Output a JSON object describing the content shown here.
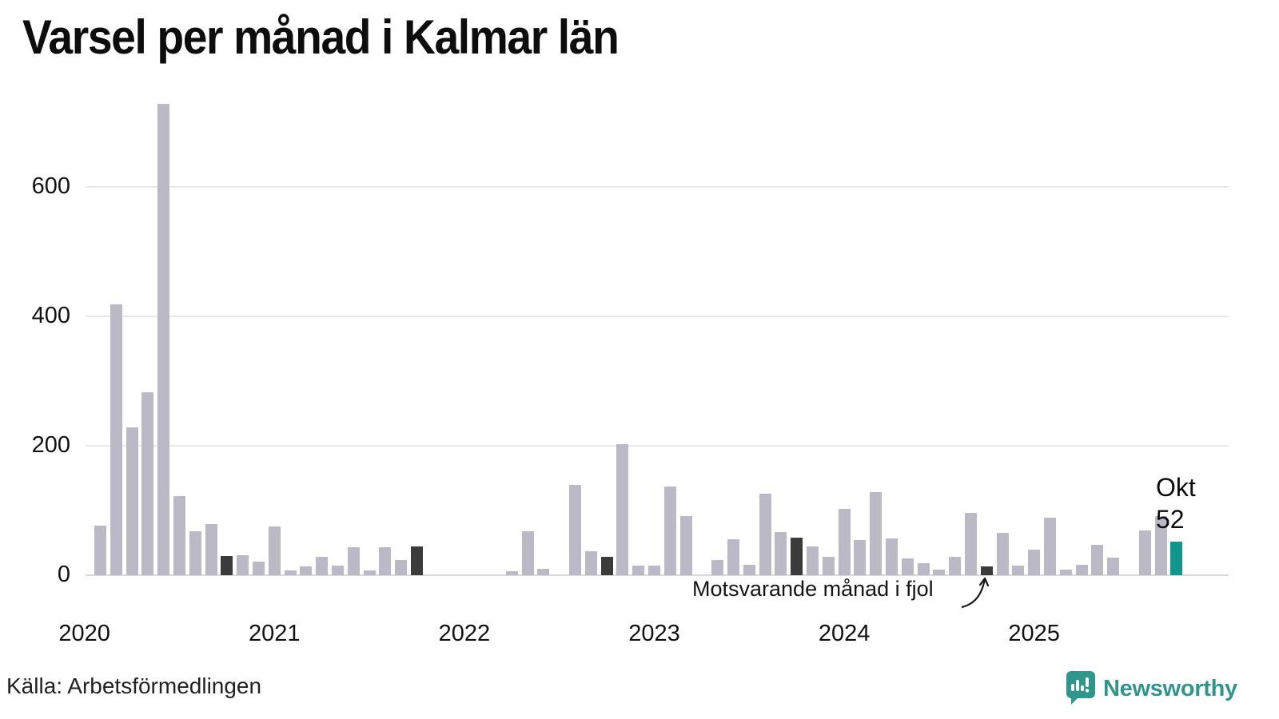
{
  "title": "Varsel per månad i Kalmar län",
  "source": "Källa: Arbetsförmedlingen",
  "annotation": {
    "label": "Motsvarande månad i fjol"
  },
  "current_point": {
    "month_label": "Okt",
    "value_label": "52"
  },
  "logo": {
    "name": "Newsworthy"
  },
  "colors": {
    "bar": "#bcb9c6",
    "bar_fjol": "#3b3b3b",
    "bar_current": "#11968b",
    "grid": "#e9e8ee",
    "axis": "#d9d8e0",
    "text": "#111111",
    "logo_teal": "#2f968c"
  },
  "chart_data": {
    "type": "bar",
    "title": "Varsel per månad i Kalmar län",
    "xlabel": "",
    "ylabel": "",
    "ylim": [
      0,
      750
    ],
    "yticks": [
      0,
      200,
      400,
      600
    ],
    "grid": true,
    "legend_position": "none",
    "x_years": [
      "2020",
      "2021",
      "2022",
      "2023",
      "2024",
      "2025"
    ],
    "annotation_text": "Motsvarande månad i fjol",
    "current_label": "Okt 52",
    "series": [
      {
        "month": "2020-01",
        "value": 0,
        "kind": "zero"
      },
      {
        "month": "2020-02",
        "value": 77,
        "kind": "normal"
      },
      {
        "month": "2020-03",
        "value": 418,
        "kind": "normal"
      },
      {
        "month": "2020-04",
        "value": 228,
        "kind": "normal"
      },
      {
        "month": "2020-05",
        "value": 283,
        "kind": "normal"
      },
      {
        "month": "2020-06",
        "value": 728,
        "kind": "normal"
      },
      {
        "month": "2020-07",
        "value": 122,
        "kind": "normal"
      },
      {
        "month": "2020-08",
        "value": 68,
        "kind": "normal"
      },
      {
        "month": "2020-09",
        "value": 79,
        "kind": "normal"
      },
      {
        "month": "2020-10",
        "value": 30,
        "kind": "fjol"
      },
      {
        "month": "2020-11",
        "value": 31,
        "kind": "normal"
      },
      {
        "month": "2020-12",
        "value": 21,
        "kind": "normal"
      },
      {
        "month": "2021-01",
        "value": 75,
        "kind": "normal"
      },
      {
        "month": "2021-02",
        "value": 7,
        "kind": "normal"
      },
      {
        "month": "2021-03",
        "value": 14,
        "kind": "normal"
      },
      {
        "month": "2021-04",
        "value": 29,
        "kind": "normal"
      },
      {
        "month": "2021-05",
        "value": 15,
        "kind": "normal"
      },
      {
        "month": "2021-06",
        "value": 43,
        "kind": "normal"
      },
      {
        "month": "2021-07",
        "value": 7,
        "kind": "normal"
      },
      {
        "month": "2021-08",
        "value": 43,
        "kind": "normal"
      },
      {
        "month": "2021-09",
        "value": 23,
        "kind": "normal"
      },
      {
        "month": "2021-10",
        "value": 44,
        "kind": "fjol"
      },
      {
        "month": "2021-11",
        "value": 0,
        "kind": "zero"
      },
      {
        "month": "2021-12",
        "value": 0,
        "kind": "zero"
      },
      {
        "month": "2022-01",
        "value": 0,
        "kind": "zero"
      },
      {
        "month": "2022-02",
        "value": 0,
        "kind": "zero"
      },
      {
        "month": "2022-03",
        "value": 0,
        "kind": "zero"
      },
      {
        "month": "2022-04",
        "value": 6,
        "kind": "normal"
      },
      {
        "month": "2022-05",
        "value": 68,
        "kind": "normal"
      },
      {
        "month": "2022-06",
        "value": 10,
        "kind": "normal"
      },
      {
        "month": "2022-07",
        "value": 0,
        "kind": "zero"
      },
      {
        "month": "2022-08",
        "value": 140,
        "kind": "normal"
      },
      {
        "month": "2022-09",
        "value": 37,
        "kind": "normal"
      },
      {
        "month": "2022-10",
        "value": 29,
        "kind": "fjol"
      },
      {
        "month": "2022-11",
        "value": 202,
        "kind": "normal"
      },
      {
        "month": "2022-12",
        "value": 15,
        "kind": "normal"
      },
      {
        "month": "2023-01",
        "value": 15,
        "kind": "normal"
      },
      {
        "month": "2023-02",
        "value": 137,
        "kind": "normal"
      },
      {
        "month": "2023-03",
        "value": 91,
        "kind": "normal"
      },
      {
        "month": "2023-04",
        "value": 0,
        "kind": "zero"
      },
      {
        "month": "2023-05",
        "value": 24,
        "kind": "normal"
      },
      {
        "month": "2023-06",
        "value": 56,
        "kind": "normal"
      },
      {
        "month": "2023-07",
        "value": 16,
        "kind": "normal"
      },
      {
        "month": "2023-08",
        "value": 126,
        "kind": "normal"
      },
      {
        "month": "2023-09",
        "value": 67,
        "kind": "normal"
      },
      {
        "month": "2023-10",
        "value": 58,
        "kind": "fjol"
      },
      {
        "month": "2023-11",
        "value": 45,
        "kind": "normal"
      },
      {
        "month": "2023-12",
        "value": 28,
        "kind": "normal"
      },
      {
        "month": "2024-01",
        "value": 102,
        "kind": "normal"
      },
      {
        "month": "2024-02",
        "value": 54,
        "kind": "normal"
      },
      {
        "month": "2024-03",
        "value": 129,
        "kind": "normal"
      },
      {
        "month": "2024-04",
        "value": 57,
        "kind": "normal"
      },
      {
        "month": "2024-05",
        "value": 26,
        "kind": "normal"
      },
      {
        "month": "2024-06",
        "value": 19,
        "kind": "normal"
      },
      {
        "month": "2024-07",
        "value": 9,
        "kind": "normal"
      },
      {
        "month": "2024-08",
        "value": 28,
        "kind": "normal"
      },
      {
        "month": "2024-09",
        "value": 96,
        "kind": "normal"
      },
      {
        "month": "2024-10",
        "value": 14,
        "kind": "fjol"
      },
      {
        "month": "2024-11",
        "value": 65,
        "kind": "normal"
      },
      {
        "month": "2024-12",
        "value": 15,
        "kind": "normal"
      },
      {
        "month": "2025-01",
        "value": 39,
        "kind": "normal"
      },
      {
        "month": "2025-02",
        "value": 89,
        "kind": "normal"
      },
      {
        "month": "2025-03",
        "value": 9,
        "kind": "normal"
      },
      {
        "month": "2025-04",
        "value": 16,
        "kind": "normal"
      },
      {
        "month": "2025-05",
        "value": 47,
        "kind": "normal"
      },
      {
        "month": "2025-06",
        "value": 27,
        "kind": "normal"
      },
      {
        "month": "2025-07",
        "value": 0,
        "kind": "zero"
      },
      {
        "month": "2025-08",
        "value": 69,
        "kind": "normal"
      },
      {
        "month": "2025-09",
        "value": 92,
        "kind": "normal"
      },
      {
        "month": "2025-10",
        "value": 52,
        "kind": "current"
      }
    ]
  }
}
